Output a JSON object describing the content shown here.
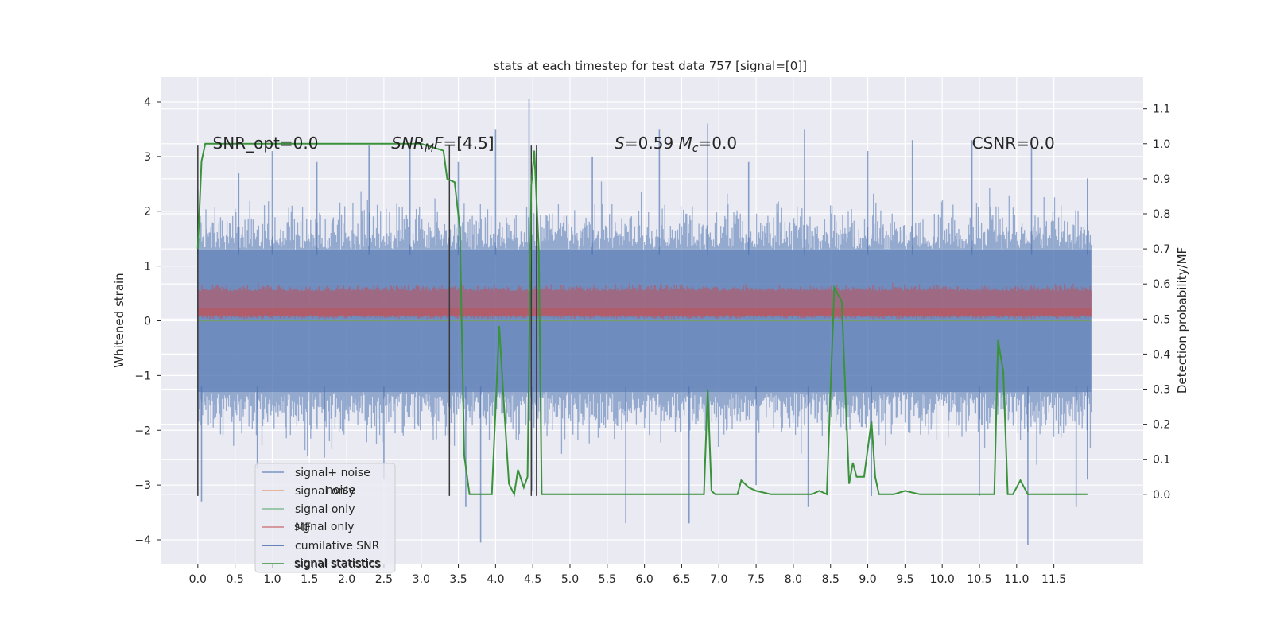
{
  "chart_data": {
    "type": "line",
    "title": "stats at each timestep for test data 757 [signal=[0]]",
    "xlabel": "",
    "ylabel": "Whitened strain",
    "ylabel_right": "Detection probability/MF",
    "xlim": [
      -0.5,
      12.7
    ],
    "ylim": [
      -4.45,
      4.45
    ],
    "ylim_right": [
      -0.2,
      1.19
    ],
    "x_ticks": [
      0.0,
      0.5,
      1.0,
      1.5,
      2.0,
      2.5,
      3.0,
      3.5,
      4.0,
      4.5,
      5.0,
      5.5,
      6.0,
      6.5,
      7.0,
      7.5,
      8.0,
      8.5,
      9.0,
      9.5,
      10.0,
      10.5,
      11.0,
      11.5
    ],
    "x_tick_labels": [
      "0.0",
      "0.5",
      "1.0",
      "1.5",
      "2.0",
      "2.5",
      "3.0",
      "3.5",
      "4.0",
      "4.5",
      "5.0",
      "5.5",
      "6.0",
      "6.5",
      "7.0",
      "7.5",
      "8.0",
      "8.5",
      "9.0",
      "9.5",
      "10.0",
      "10.5",
      "11.0",
      "11.5"
    ],
    "y_ticks": [
      -4,
      -3,
      -2,
      -1,
      0,
      1,
      2,
      3,
      4
    ],
    "y_tick_labels": [
      "−4",
      "−3",
      "−2",
      "−1",
      "0",
      "1",
      "2",
      "3",
      "4"
    ],
    "y_right_ticks": [
      0.0,
      0.1,
      0.2,
      0.3,
      0.4,
      0.5,
      0.6,
      0.7,
      0.8,
      0.9,
      1.0,
      1.1
    ],
    "y_right_tick_labels": [
      "0.0",
      "0.1",
      "0.2",
      "0.3",
      "0.4",
      "0.5",
      "0.6",
      "0.7",
      "0.8",
      "0.9",
      "1.0",
      "1.1"
    ],
    "grid": true,
    "legend_position": "lower-left",
    "annotations": [
      {
        "text": "SNR_opt=0.0",
        "x": 0.2,
        "y": 3.2
      },
      {
        "text": "SNR_MF=[4.5]",
        "x": 2.6,
        "y": 3.2
      },
      {
        "text": "S=0.59   M_c=0.0",
        "x": 5.6,
        "y": 3.2
      },
      {
        "text": "CSNR=0.0",
        "x": 10.4,
        "y": 3.2
      }
    ],
    "vertical_lines_x": [
      0.0,
      3.38,
      4.48,
      4.55
    ],
    "vertical_lines_y_range": [
      -3.2,
      3.2
    ],
    "series": [
      {
        "name": "signal+ noise",
        "color": "#4c72b0",
        "style": "noise-band",
        "x_range": [
          0.0,
          12.0
        ],
        "typical_range": [
          -1.3,
          1.3
        ],
        "peak_highs": [
          [
            0.0,
            2.4
          ],
          [
            0.55,
            2.7
          ],
          [
            1.0,
            3.1
          ],
          [
            1.6,
            2.9
          ],
          [
            2.3,
            3.2
          ],
          [
            2.85,
            3.2
          ],
          [
            3.5,
            2.9
          ],
          [
            4.0,
            3.5
          ],
          [
            4.45,
            4.05
          ],
          [
            5.3,
            3.0
          ],
          [
            6.2,
            3.5
          ],
          [
            6.85,
            3.6
          ],
          [
            7.4,
            2.9
          ],
          [
            8.15,
            3.5
          ],
          [
            9.0,
            3.1
          ],
          [
            9.6,
            3.3
          ],
          [
            10.4,
            3.3
          ],
          [
            11.2,
            3.3
          ],
          [
            11.95,
            2.6
          ]
        ],
        "peak_lows": [
          [
            0.05,
            -3.3
          ],
          [
            0.8,
            -2.7
          ],
          [
            1.7,
            -2.5
          ],
          [
            2.5,
            -2.9
          ],
          [
            3.6,
            -3.4
          ],
          [
            3.8,
            -4.05
          ],
          [
            4.5,
            -3.1
          ],
          [
            5.75,
            -3.7
          ],
          [
            6.6,
            -3.7
          ],
          [
            7.5,
            -3.0
          ],
          [
            8.2,
            -3.4
          ],
          [
            9.05,
            -3.2
          ],
          [
            10.5,
            -3.2
          ],
          [
            11.15,
            -4.1
          ],
          [
            11.8,
            -3.4
          ],
          [
            11.95,
            -2.9
          ]
        ]
      },
      {
        "name": "signal only",
        "color": "#dd8452",
        "style": "flat",
        "value": 0
      },
      {
        "name": "signal only",
        "color": "#55a868",
        "style": "flat",
        "value": 0
      },
      {
        "name": "MF",
        "color": "#c44e52",
        "style": "mf-band",
        "axis": "right",
        "x_range": [
          0.0,
          12.0
        ],
        "typical_range": [
          0.52,
          0.58
        ],
        "peak_high": 0.62
      },
      {
        "name": "cumilative SNR",
        "color": "#3a5fa8",
        "style": "hidden"
      },
      {
        "name": "signal statistics",
        "color": "#3a923a",
        "axis": "right",
        "x": [
          0.0,
          0.05,
          0.1,
          0.2,
          0.5,
          1.0,
          1.5,
          2.0,
          2.5,
          3.0,
          3.3,
          3.35,
          3.45,
          3.52,
          3.58,
          3.65,
          3.72,
          3.82,
          3.95,
          4.05,
          4.1,
          4.18,
          4.25,
          4.3,
          4.38,
          4.43,
          4.48,
          4.52,
          4.58,
          4.62,
          4.7,
          4.8,
          5.0,
          5.3,
          5.5,
          5.7,
          6.0,
          6.5,
          6.8,
          6.85,
          6.9,
          6.95,
          7.1,
          7.25,
          7.3,
          7.4,
          7.5,
          7.7,
          8.0,
          8.1,
          8.25,
          8.35,
          8.45,
          8.55,
          8.65,
          8.75,
          8.8,
          8.85,
          8.95,
          9.05,
          9.1,
          9.15,
          9.25,
          9.35,
          9.5,
          9.7,
          10.0,
          10.3,
          10.45,
          10.55,
          10.62,
          10.7,
          10.75,
          10.82,
          10.88,
          10.95,
          11.05,
          11.15,
          11.3,
          11.5,
          11.7,
          11.9,
          11.95
        ],
        "y": [
          0.7,
          0.95,
          1.0,
          1.0,
          1.0,
          1.0,
          1.0,
          1.0,
          1.0,
          1.0,
          0.98,
          0.9,
          0.89,
          0.76,
          0.11,
          0.0,
          0.0,
          0.0,
          0.0,
          0.48,
          0.3,
          0.03,
          0.0,
          0.07,
          0.02,
          0.05,
          0.88,
          0.98,
          0.7,
          0.0,
          0.0,
          0.0,
          0.0,
          0.0,
          0.0,
          0.0,
          0.0,
          0.0,
          0.0,
          0.3,
          0.01,
          0.0,
          0.0,
          0.0,
          0.04,
          0.02,
          0.01,
          0.0,
          0.0,
          0.0,
          0.0,
          0.01,
          0.0,
          0.59,
          0.55,
          0.03,
          0.09,
          0.05,
          0.05,
          0.21,
          0.05,
          0.0,
          0.0,
          0.0,
          0.01,
          0.0,
          0.0,
          0.0,
          0.0,
          0.0,
          0.0,
          0.0,
          0.44,
          0.35,
          0.0,
          0.0,
          0.04,
          0.0,
          0.0,
          0.0,
          0.0,
          0.0,
          0.0
        ]
      }
    ],
    "legend_entries": [
      {
        "label": "signal+ noise",
        "color": "#4c72b0"
      },
      {
        "label": "signal only",
        "color": "#dd8452"
      },
      {
        "label": "signal only",
        "color": "#55a868"
      },
      {
        "label": "MF",
        "color": "#c44e52"
      },
      {
        "label": "cumilative SNR",
        "color": "#3a5fa8"
      },
      {
        "label": "signal statistics",
        "color": "#3a923a"
      }
    ],
    "legend_ghost_labels": [
      "noise",
      "signal only",
      "signal statistics"
    ]
  }
}
